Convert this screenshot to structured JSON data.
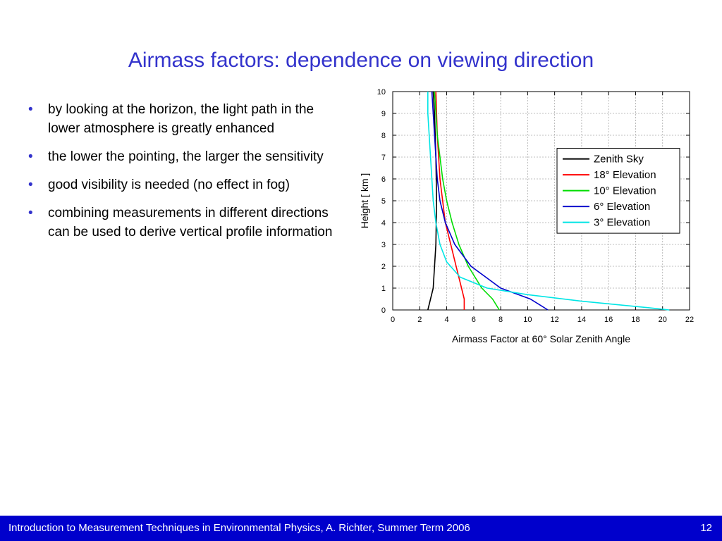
{
  "slide": {
    "title": "Airmass factors: dependence on viewing direction",
    "bullets": [
      "by looking at the horizon, the light path in the lower atmosphere is greatly enhanced",
      "the lower the pointing, the larger the sensitivity",
      "good visibility is needed (no effect in fog)",
      "combining measurements in different directions can be used to derive vertical profile information"
    ]
  },
  "footer": {
    "text": "Introduction to Measurement Techniques in Environmental Physics, A. Richter, Summer Term 2006",
    "page": "12"
  },
  "chart_data": {
    "type": "line",
    "title": "",
    "xlabel": "Airmass Factor at 60° Solar Zenith Angle",
    "ylabel": "Height [ km ]",
    "xlim": [
      0,
      22
    ],
    "ylim": [
      0,
      10
    ],
    "xticks": [
      0,
      2,
      4,
      6,
      8,
      10,
      12,
      14,
      16,
      18,
      20,
      22
    ],
    "yticks": [
      0,
      1,
      2,
      3,
      4,
      5,
      6,
      7,
      8,
      9,
      10
    ],
    "grid": true,
    "legend_position": "right",
    "series": [
      {
        "name": "Zenith Sky",
        "color": "#000000",
        "points": [
          [
            2.6,
            0
          ],
          [
            2.8,
            0.5
          ],
          [
            3.0,
            1
          ],
          [
            3.1,
            2
          ],
          [
            3.2,
            3
          ],
          [
            3.25,
            5
          ],
          [
            3.2,
            7
          ],
          [
            3.1,
            9
          ],
          [
            3.0,
            10
          ]
        ]
      },
      {
        "name": "18° Elevation",
        "color": "#ff0000",
        "points": [
          [
            5.3,
            0
          ],
          [
            5.3,
            0.5
          ],
          [
            5.1,
            1
          ],
          [
            4.7,
            2
          ],
          [
            4.3,
            3
          ],
          [
            3.9,
            4
          ],
          [
            3.7,
            5
          ],
          [
            3.5,
            6
          ],
          [
            3.4,
            7
          ],
          [
            3.3,
            8
          ],
          [
            3.25,
            9
          ],
          [
            3.2,
            10
          ]
        ]
      },
      {
        "name": "10° Elevation",
        "color": "#00dd00",
        "points": [
          [
            7.9,
            0
          ],
          [
            7.4,
            0.5
          ],
          [
            6.6,
            1
          ],
          [
            5.6,
            2
          ],
          [
            4.9,
            3
          ],
          [
            4.4,
            4
          ],
          [
            4.0,
            5
          ],
          [
            3.7,
            6
          ],
          [
            3.5,
            7
          ],
          [
            3.3,
            8
          ],
          [
            3.2,
            9
          ],
          [
            3.1,
            10
          ]
        ]
      },
      {
        "name": "6° Elevation",
        "color": "#0000cc",
        "points": [
          [
            11.5,
            0
          ],
          [
            10.2,
            0.5
          ],
          [
            8.0,
            1
          ],
          [
            5.8,
            2
          ],
          [
            4.6,
            3
          ],
          [
            3.9,
            4
          ],
          [
            3.5,
            5
          ],
          [
            3.3,
            6
          ],
          [
            3.2,
            7
          ],
          [
            3.1,
            8
          ],
          [
            3.0,
            9
          ],
          [
            2.9,
            10
          ]
        ]
      },
      {
        "name": "3° Elevation",
        "color": "#00e5e5",
        "points": [
          [
            20.5,
            0
          ],
          [
            19.0,
            0.1
          ],
          [
            14.0,
            0.4
          ],
          [
            10.0,
            0.7
          ],
          [
            7.0,
            1
          ],
          [
            5.0,
            1.5
          ],
          [
            4.0,
            2.2
          ],
          [
            3.5,
            3
          ],
          [
            3.2,
            4
          ],
          [
            3.0,
            5
          ],
          [
            2.9,
            6
          ],
          [
            2.8,
            7
          ],
          [
            2.7,
            8
          ],
          [
            2.6,
            9
          ],
          [
            2.6,
            10
          ]
        ]
      }
    ]
  }
}
